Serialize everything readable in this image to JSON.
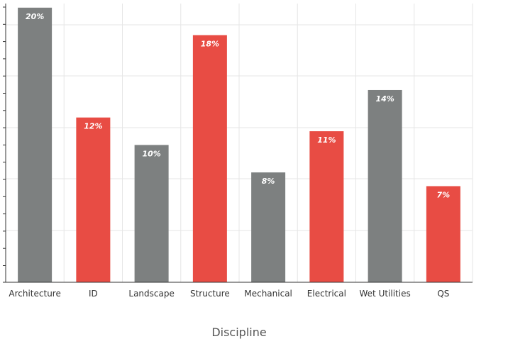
{
  "chart_data": {
    "type": "bar",
    "title": "",
    "xlabel": "Discipline",
    "ylabel": "",
    "categories": [
      "Architecture",
      "ID",
      "Landscape",
      "Structure",
      "Mechanical",
      "Electrical",
      "Wet Utilities",
      "QS"
    ],
    "values": [
      20,
      12,
      10,
      18,
      8,
      11,
      14,
      7
    ],
    "value_labels": [
      "20%",
      "12%",
      "10%",
      "18%",
      "8%",
      "11%",
      "14%",
      "7%"
    ],
    "bar_colors": [
      "#7d8080",
      "#e84c44",
      "#7d8080",
      "#e84c44",
      "#7d8080",
      "#e84c44",
      "#7d8080",
      "#e84c44"
    ],
    "ylim": [
      0,
      20.3
    ],
    "grid": true,
    "legend": "none"
  },
  "colors": {
    "gray_bar": "#7d8080",
    "red_bar": "#e84c44",
    "grid": "#e6e6e6",
    "axis": "#333333"
  }
}
